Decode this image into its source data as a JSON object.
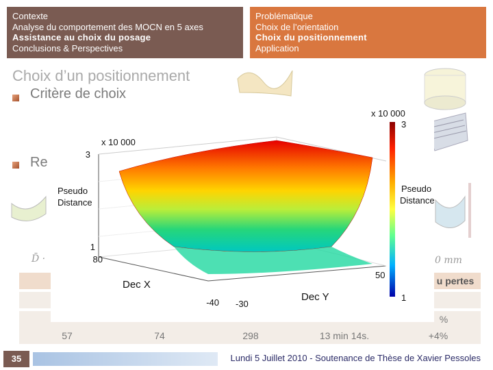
{
  "header": {
    "left": [
      {
        "text": "Contexte",
        "bold": false
      },
      {
        "text": "Analyse du comportement des MOCN en 5 axes",
        "bold": false
      },
      {
        "text": "Assistance au choix du posage",
        "bold": true
      },
      {
        "text": "Conclusions & Perspectives",
        "bold": false
      }
    ],
    "right": [
      {
        "text": "Problématique",
        "bold": false
      },
      {
        "text": "Choix de l’orientation",
        "bold": false
      },
      {
        "text": "Choix du positionnement",
        "bold": true
      },
      {
        "text": "Application",
        "bold": false
      }
    ]
  },
  "slide": {
    "title": "Choix d’un positionnement",
    "bullets": [
      "Critère de choix",
      "Re"
    ],
    "math_left": "D̄ · ",
    "math_right": "0 mm"
  },
  "table": {
    "header_right": "u pertes",
    "rows": [
      {
        "c5": ""
      },
      {
        "c5": "%"
      },
      {
        "c1": "57",
        "c2": "74",
        "c3": "298",
        "c4": "13 min 14s.",
        "c5": "+4%"
      }
    ]
  },
  "chart": {
    "title_multiplier": "x 10 000",
    "zlabel": "Pseudo\nDistance",
    "xlabel": "Dec X",
    "ylabel": "Dec Y",
    "z_ticks": [
      "3",
      "1"
    ],
    "x_ticks": [
      "80",
      "-40"
    ],
    "y_ticks": [
      "50",
      "-30"
    ],
    "colorbar_multiplier": "x 10 000",
    "colorbar_ticks": [
      "3",
      "1"
    ],
    "colorbar_label": "Pseudo\nDistance",
    "colors": {
      "high": "#cc0000",
      "mid": "#ffff00",
      "low": "#00cc66",
      "min": "#0000ff"
    }
  },
  "footer": {
    "page": "35",
    "text": "Lundi 5 Juillet 2010 - Soutenance de Thèse de Xavier Pessoles"
  }
}
